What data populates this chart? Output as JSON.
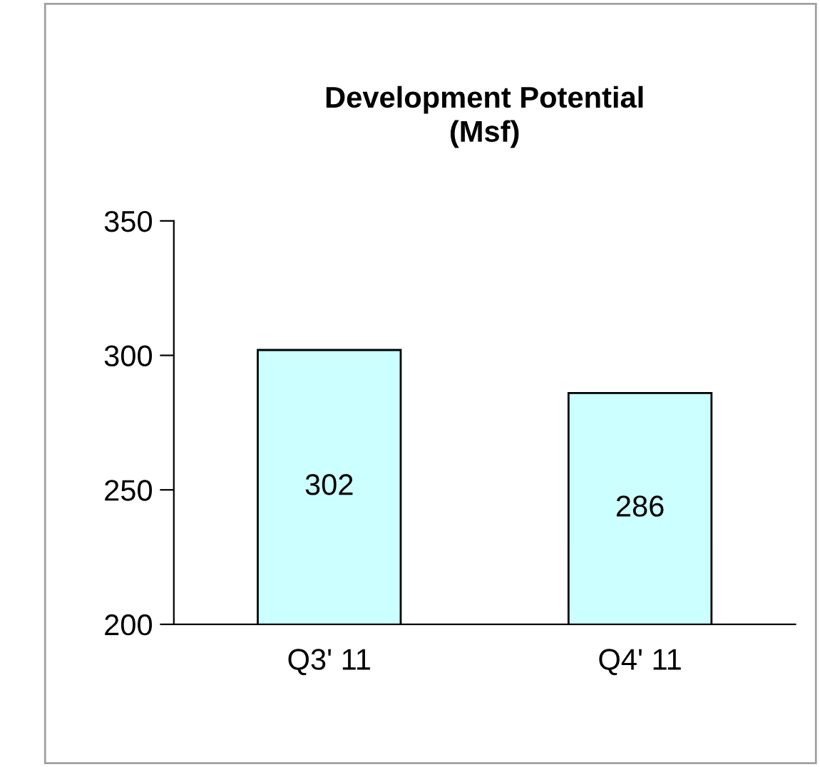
{
  "chart_data": {
    "type": "bar",
    "title": "Development Potential\n(Msf)",
    "categories": [
      "Q3' 11",
      "Q4' 11"
    ],
    "series": [
      {
        "color": "#ccffff",
        "values": [
          302,
          286
        ]
      }
    ],
    "ylim": [
      200,
      350
    ],
    "yticks": [
      200,
      250,
      300,
      350
    ],
    "grid": false,
    "legend": false,
    "data_labels": true
  }
}
